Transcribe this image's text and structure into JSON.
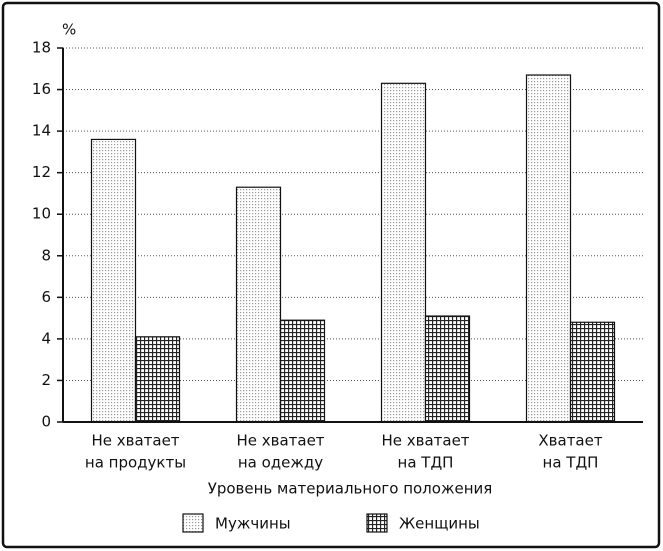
{
  "chart_data": {
    "type": "bar",
    "y_label": "%",
    "x_label": "Уровень материального положения",
    "categories": [
      [
        "Не хватает",
        "на продукты"
      ],
      [
        "Не хватает",
        "на одежду"
      ],
      [
        "Не хватает",
        "на ТДП"
      ],
      [
        "Хватает",
        "на ТДП"
      ]
    ],
    "series": [
      {
        "name": "Мужчины",
        "color": "#9a9a9a",
        "pattern": "dots",
        "values": [
          13.6,
          11.3,
          16.3,
          16.7
        ]
      },
      {
        "name": "Женщины",
        "color": "#222222",
        "pattern": "grid",
        "values": [
          4.1,
          4.9,
          5.1,
          4.8
        ]
      }
    ],
    "ylim": [
      0,
      18
    ],
    "yticks": [
      0,
      2,
      4,
      6,
      8,
      10,
      12,
      14,
      16,
      18
    ],
    "grid": true
  }
}
